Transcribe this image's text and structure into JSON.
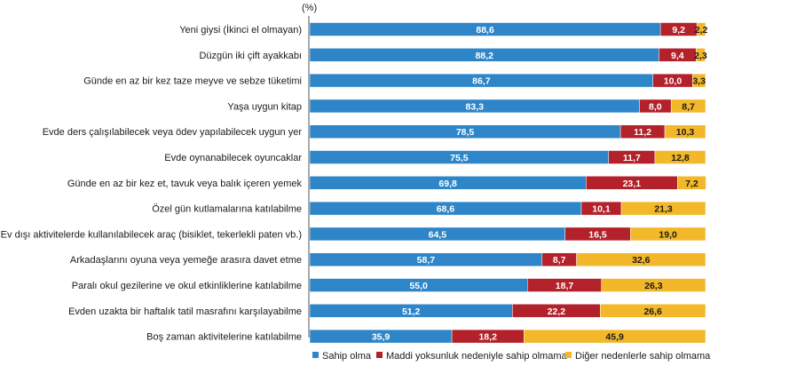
{
  "chart_data": {
    "type": "bar",
    "orientation": "horizontal",
    "stacked": true,
    "unit_label": "(%)",
    "categories": [
      "Yeni giysi (İkinci el olmayan)",
      "Düzgün iki çift ayakkabı",
      "Günde en az bir kez taze meyve ve sebze tüketimi",
      "Yaşa uygun kitap",
      "Evde ders çalışılabilecek veya ödev yapılabilecek uygun yer",
      "Evde oynanabilecek oyuncaklar",
      "Günde en az bir kez et, tavuk veya balık içeren yemek",
      "Özel gün kutlamalarına katılabilme",
      "Ev dışı aktivitelerde kullanılabilecek araç (bisiklet, tekerlekli paten vb.)",
      "Arkadaşlarını oyuna veya yemeğe arasıra davet etme",
      "Paralı okul gezilerine ve okul etkinliklerine katılabilme",
      "Evden uzakta bir haftalık tatil masrafını karşılayabilme",
      "Boş zaman aktivitelerine katılabilme"
    ],
    "series": [
      {
        "name": "Sahip olma",
        "color": "#2e86c8",
        "text_color": "#ffffff",
        "values": [
          88.6,
          88.2,
          86.7,
          83.3,
          78.5,
          75.5,
          69.8,
          68.6,
          64.5,
          58.7,
          55.0,
          51.2,
          35.9
        ],
        "labels": [
          "88,6",
          "88,2",
          "86,7",
          "83,3",
          "78,5",
          "75,5",
          "69,8",
          "68,6",
          "64,5",
          "58,7",
          "55,0",
          "51,2",
          "35,9"
        ]
      },
      {
        "name": "Maddi yoksunluk nedeniyle sahip olmama",
        "color": "#b3212a",
        "text_color": "#ffffff",
        "values": [
          9.2,
          9.4,
          10.0,
          8.0,
          11.2,
          11.7,
          23.1,
          10.1,
          16.5,
          8.7,
          18.7,
          22.2,
          18.2
        ],
        "labels": [
          "9,2",
          "9,4",
          "10,0",
          "8,0",
          "11,2",
          "11,7",
          "23,1",
          "10,1",
          "16,5",
          "8,7",
          "18,7",
          "22,2",
          "18,2"
        ]
      },
      {
        "name": "Diğer nedenlerle sahip olmama",
        "color": "#f2b829",
        "text_color": "#1a1a1a",
        "values": [
          2.2,
          2.3,
          3.3,
          8.7,
          10.3,
          12.8,
          7.2,
          21.3,
          19.0,
          32.6,
          26.3,
          26.6,
          45.9
        ],
        "labels": [
          "2,2",
          "2,3",
          "3,3",
          "8,7",
          "10,3",
          "12,8",
          "7,2",
          "21,3",
          "19,0",
          "32,6",
          "26,3",
          "26,6",
          "45,9"
        ]
      }
    ],
    "xlim": [
      0,
      100
    ],
    "grid": false,
    "legend_position": "bottom-right"
  }
}
